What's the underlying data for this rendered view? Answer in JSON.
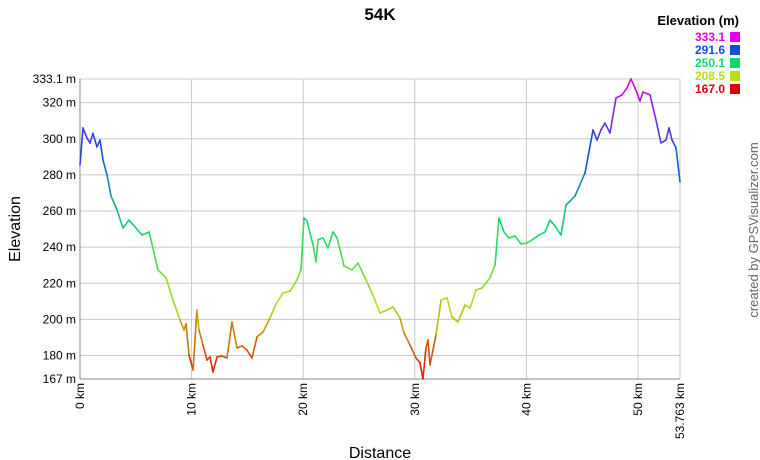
{
  "chart_data": {
    "type": "line",
    "title": "54K",
    "x_label": "Distance",
    "y_label": "Elevation",
    "credit": "created by GPSVisualizer.com",
    "legend": {
      "title": "Elevation (m)",
      "position": "top-right",
      "entries": [
        {
          "value": 333.1,
          "color": "#e600e6"
        },
        {
          "value": 291.6,
          "color": "#1050d8"
        },
        {
          "value": 250.1,
          "color": "#10d870"
        },
        {
          "value": 208.5,
          "color": "#b4e010"
        },
        {
          "value": 167,
          "label": "167.0",
          "color": "#e00000"
        }
      ]
    },
    "xlim": [
      0,
      53.763
    ],
    "ylim": [
      167,
      333.1
    ],
    "grid": true,
    "xticks": [
      {
        "value": 0,
        "label": "0 km"
      },
      {
        "value": 10,
        "label": "10 km"
      },
      {
        "value": 20,
        "label": "20 km"
      },
      {
        "value": 30,
        "label": "30 km"
      },
      {
        "value": 40,
        "label": "40 km"
      },
      {
        "value": 50,
        "label": "50 km"
      },
      {
        "value": 53.763,
        "label": "53.763 km"
      }
    ],
    "yticks": [
      {
        "value": 167,
        "label": "167 m"
      },
      {
        "value": 180,
        "label": "180 m"
      },
      {
        "value": 200,
        "label": "200 m"
      },
      {
        "value": 220,
        "label": "220 m"
      },
      {
        "value": 240,
        "label": "240 m"
      },
      {
        "value": 260,
        "label": "260 m"
      },
      {
        "value": 280,
        "label": "280 m"
      },
      {
        "value": 300,
        "label": "300 m"
      },
      {
        "value": 320,
        "label": "320 m"
      },
      {
        "value": 333.1,
        "label": "333.1 m"
      }
    ],
    "x": [
      0,
      0.27,
      0.63,
      0.9,
      1.16,
      1.52,
      1.79,
      2.06,
      2.42,
      2.78,
      3.32,
      3.85,
      4.39,
      4.93,
      5.56,
      6.18,
      6.36,
      6.99,
      7.71,
      8.33,
      8.96,
      9.32,
      9.5,
      9.77,
      10.13,
      10.48,
      10.66,
      11.02,
      11.38,
      11.65,
      11.92,
      12.28,
      12.72,
      13.17,
      13.62,
      14.07,
      14.52,
      14.96,
      15.41,
      15.86,
      16.4,
      17.03,
      17.56,
      18.19,
      18.82,
      19.44,
      19.8,
      20.07,
      20.34,
      20.88,
      21.15,
      21.33,
      21.77,
      22.22,
      22.67,
      23.03,
      23.66,
      24.37,
      24.91,
      25.54,
      26.25,
      26.88,
      27.51,
      28.05,
      28.67,
      29.03,
      29.57,
      30.11,
      30.47,
      30.73,
      31,
      31.18,
      31.36,
      31.9,
      32.35,
      32.89,
      33.33,
      33.87,
      34.5,
      34.95,
      35.48,
      36.02,
      36.74,
      37.19,
      37.54,
      37.99,
      38.44,
      38.98,
      39.52,
      40.05,
      40.5,
      41.13,
      41.67,
      42.11,
      42.56,
      43.1,
      43.55,
      44.35,
      45.25,
      45.97,
      46.33,
      46.68,
      47.04,
      47.49,
      48.03,
      48.57,
      49.01,
      49.37,
      49.73,
      50.18,
      50.45,
      51.08,
      51.61,
      52.06,
      52.51,
      52.78,
      53.05,
      53.41,
      53.763
    ],
    "values": [
      285.5,
      306,
      300.4,
      297.7,
      303,
      295.5,
      299.3,
      288.3,
      280,
      268.3,
      260.6,
      250.6,
      255,
      251.2,
      246.7,
      248.4,
      244,
      227.4,
      223,
      210.7,
      199.7,
      194.1,
      197.5,
      180.3,
      172,
      205.2,
      194.1,
      185.8,
      177.5,
      179.2,
      170.9,
      179.2,
      179.7,
      178.6,
      198.6,
      184.2,
      185.3,
      183,
      178.6,
      190.3,
      193,
      200.8,
      208.5,
      214.6,
      215.7,
      221.8,
      227.4,
      256.1,
      254.5,
      241.2,
      231.8,
      244,
      245.1,
      239.5,
      248.4,
      245.1,
      229.6,
      227.4,
      231.2,
      223,
      213.5,
      203.5,
      205.2,
      206.9,
      200.8,
      192.5,
      185.8,
      178.6,
      175.9,
      167,
      184.2,
      188.6,
      174.8,
      191.4,
      210.7,
      211.9,
      201.3,
      198.6,
      208,
      206.3,
      216.3,
      217.4,
      223,
      230.1,
      256.1,
      248.4,
      245.1,
      246.2,
      241.7,
      242.3,
      244,
      246.7,
      248.4,
      255,
      251.7,
      246.7,
      263.3,
      268.3,
      281,
      304.9,
      299.3,
      304.9,
      308.7,
      303.2,
      322.6,
      324.3,
      328.1,
      333.1,
      328.1,
      320.9,
      325.9,
      324.3,
      310.4,
      297.7,
      299.3,
      306,
      299.3,
      294.9,
      276.1
    ]
  }
}
